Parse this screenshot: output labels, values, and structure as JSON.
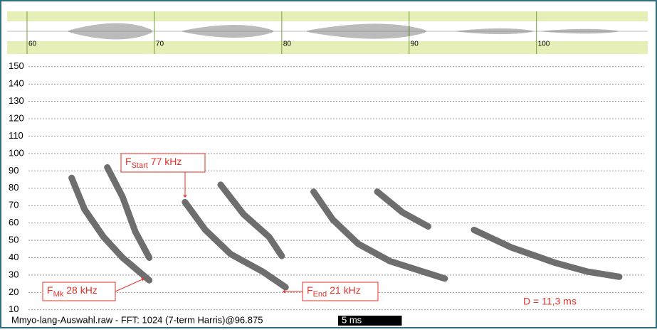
{
  "chart_data": {
    "type": "spectrogram",
    "xlim": [
      60,
      107.9
    ],
    "xticks": [
      60,
      70,
      80,
      90,
      100
    ],
    "ylim": [
      5,
      154
    ],
    "yticks": [
      10,
      20,
      30,
      40,
      50,
      60,
      70,
      80,
      90,
      100,
      110,
      120,
      130,
      140,
      150
    ],
    "grid": true,
    "color": "#6e6e6e",
    "series": [
      {
        "x": [
          63.5,
          64.5,
          66,
          67.5,
          69.6
        ],
        "values": [
          86,
          68,
          52,
          40,
          27
        ]
      },
      {
        "x": [
          66.3,
          67.5,
          68.5,
          69.6
        ],
        "values": [
          92,
          75,
          55,
          40
        ]
      },
      {
        "x": [
          72.4,
          74,
          76,
          78.5,
          80.3
        ],
        "values": [
          72,
          56,
          42,
          32,
          23
        ]
      },
      {
        "x": [
          75.2,
          77,
          79,
          80
        ],
        "values": [
          82,
          65,
          52,
          41
        ]
      },
      {
        "x": [
          82.5,
          84,
          86,
          88.5,
          92.8
        ],
        "values": [
          78,
          62,
          48,
          38,
          28
        ]
      },
      {
        "x": [
          87.5,
          89.5,
          91.5
        ],
        "values": [
          78,
          66,
          58
        ]
      },
      {
        "x": [
          95.1,
          98,
          101.5,
          104,
          106.5
        ],
        "values": [
          56,
          46,
          37,
          32,
          29
        ]
      }
    ],
    "annotations": [
      {
        "symbol": "F",
        "subscript": "Start",
        "text": "77 kHz"
      },
      {
        "symbol": "F",
        "subscript": "Mk",
        "text": "28 kHz"
      },
      {
        "symbol": "F",
        "subscript": "End",
        "text": "21 kHz"
      }
    ],
    "duration_label": "D = 11,3 ms",
    "footer": "Mmyo-lang-Auswahl.raw - FFT: 1024 (7-term Harris)@96.875",
    "scale_bar": "5 ms"
  }
}
